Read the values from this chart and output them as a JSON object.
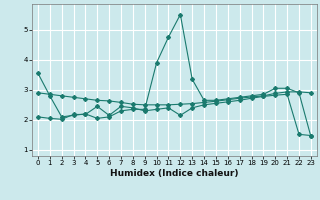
{
  "title": "",
  "xlabel": "Humidex (Indice chaleur)",
  "background_color": "#cce9ec",
  "line_color": "#1a7a6e",
  "grid_color": "#ffffff",
  "xlim": [
    -0.5,
    23.5
  ],
  "ylim": [
    0.8,
    5.85
  ],
  "yticks": [
    1,
    2,
    3,
    4,
    5
  ],
  "xticks": [
    0,
    1,
    2,
    3,
    4,
    5,
    6,
    7,
    8,
    9,
    10,
    11,
    12,
    13,
    14,
    15,
    16,
    17,
    18,
    19,
    20,
    21,
    22,
    23
  ],
  "line1_x": [
    0,
    1,
    2,
    3,
    4,
    5,
    6,
    7,
    8,
    9,
    10,
    11,
    12,
    13,
    14,
    15,
    16,
    17,
    18,
    19,
    20,
    21,
    22,
    23
  ],
  "line1_y": [
    3.55,
    2.8,
    2.1,
    2.15,
    2.2,
    2.05,
    2.1,
    2.3,
    2.35,
    2.35,
    3.9,
    4.75,
    5.5,
    3.35,
    2.65,
    2.65,
    2.7,
    2.75,
    2.8,
    2.85,
    3.05,
    3.05,
    2.9,
    1.45
  ],
  "line2_x": [
    0,
    1,
    2,
    3,
    4,
    5,
    6,
    7,
    8,
    9,
    10,
    11,
    12,
    13,
    14,
    15,
    16,
    17,
    18,
    19,
    20,
    21,
    22,
    23
  ],
  "line2_y": [
    2.9,
    2.85,
    2.8,
    2.75,
    2.7,
    2.65,
    2.63,
    2.58,
    2.52,
    2.5,
    2.5,
    2.5,
    2.52,
    2.54,
    2.58,
    2.62,
    2.67,
    2.72,
    2.76,
    2.8,
    2.88,
    2.93,
    2.93,
    2.9
  ],
  "line3_x": [
    0,
    1,
    2,
    3,
    4,
    5,
    6,
    7,
    8,
    9,
    10,
    11,
    12,
    13,
    14,
    15,
    16,
    17,
    18,
    19,
    20,
    21,
    22,
    23
  ],
  "line3_y": [
    2.1,
    2.05,
    2.02,
    2.18,
    2.18,
    2.45,
    2.15,
    2.45,
    2.4,
    2.3,
    2.35,
    2.4,
    2.15,
    2.4,
    2.5,
    2.55,
    2.6,
    2.65,
    2.72,
    2.78,
    2.82,
    2.85,
    1.52,
    1.48
  ],
  "xlabel_fontsize": 6.5,
  "xlabel_fontweight": "bold",
  "tick_fontsize": 5.0,
  "marker_size": 2.0,
  "line_width": 0.8
}
